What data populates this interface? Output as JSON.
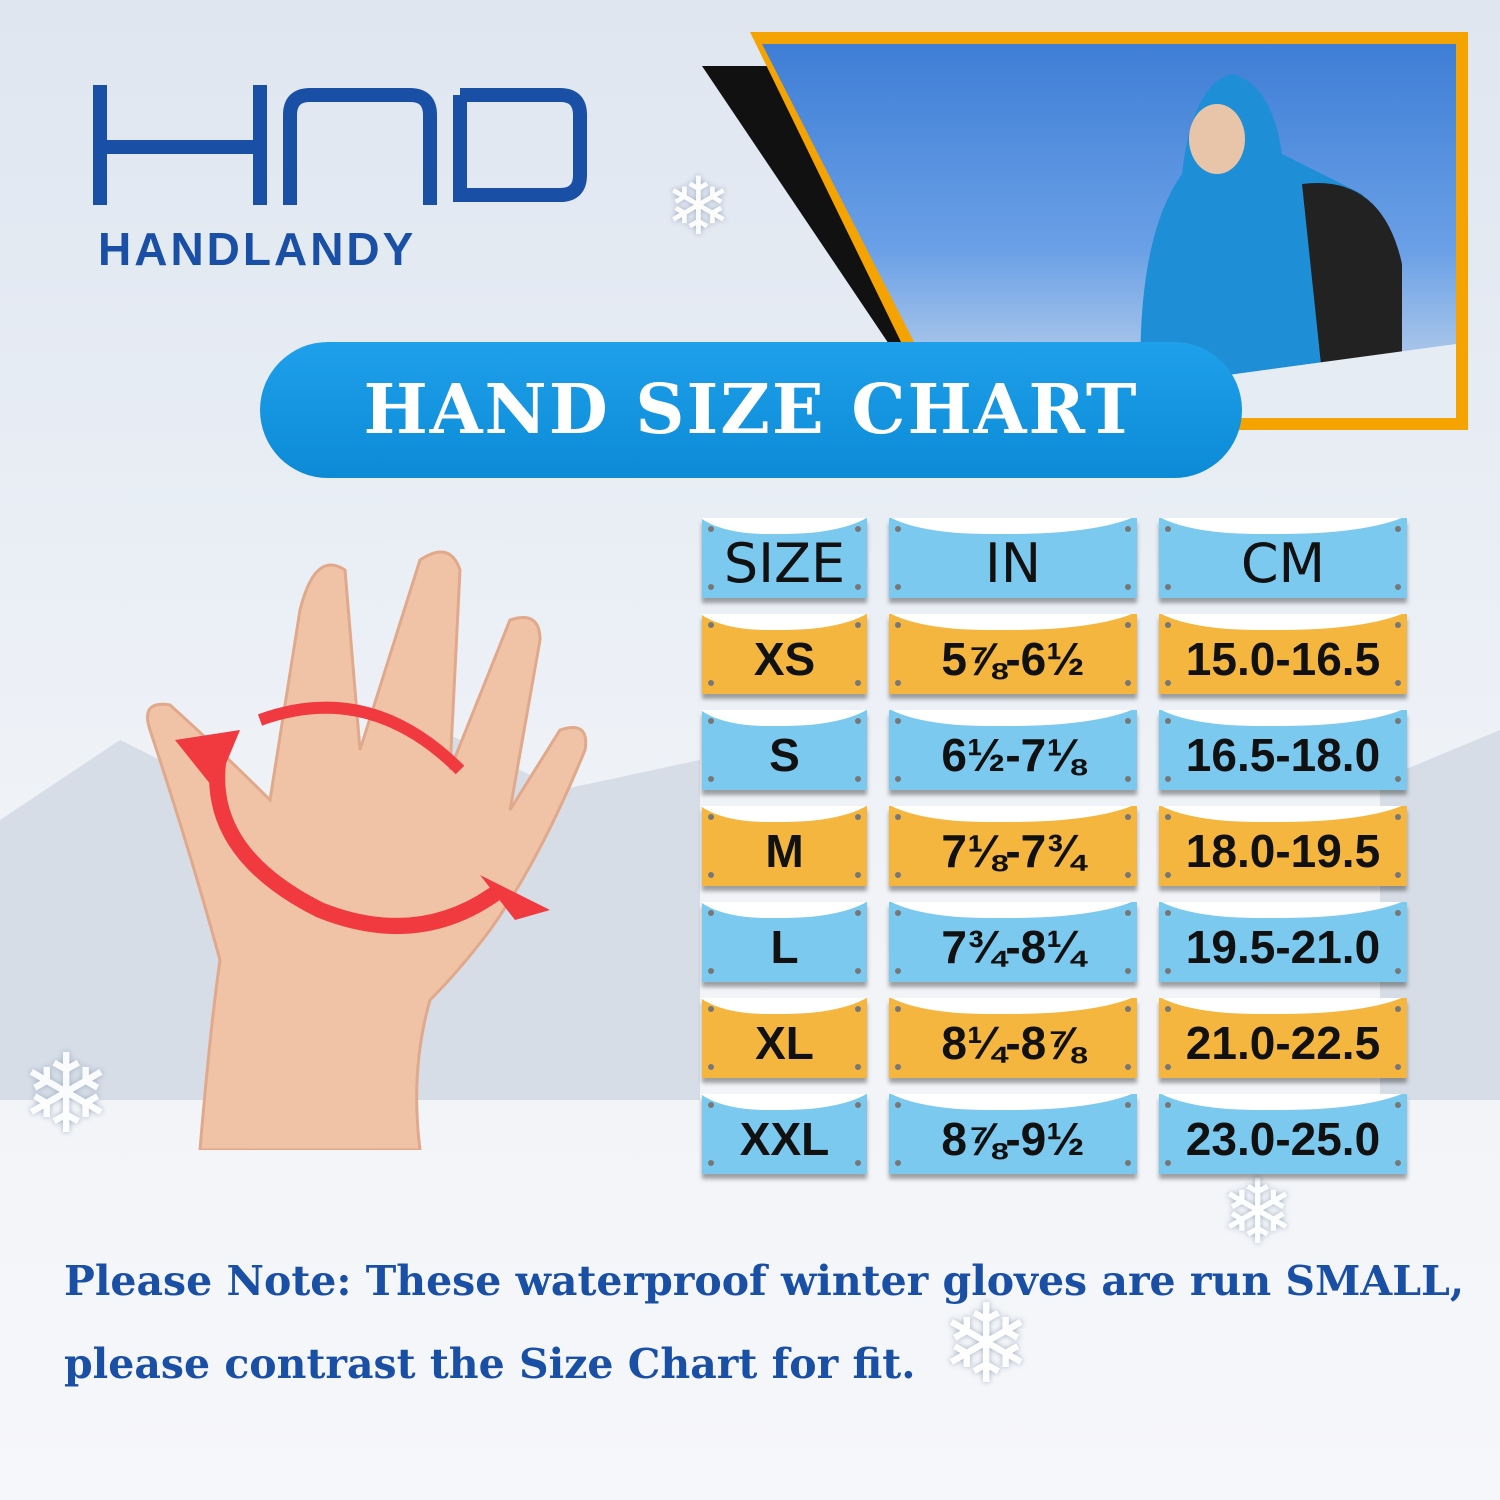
{
  "brand": {
    "logo_text": "HANDLANDY",
    "logo_mark": "HD"
  },
  "banner": {
    "title": "HAND SIZE CHART"
  },
  "table": {
    "headers": [
      "SIZE",
      "IN",
      "CM"
    ],
    "rows": [
      {
        "size": "XS",
        "in": "5⅞-6½",
        "cm": "15.0-16.5",
        "color": "orange"
      },
      {
        "size": "S",
        "in": "6½-7⅛",
        "cm": "16.5-18.0",
        "color": "blue"
      },
      {
        "size": "M",
        "in": "7⅛-7¾",
        "cm": "18.0-19.5",
        "color": "orange"
      },
      {
        "size": "L",
        "in": "7¾-8¼",
        "cm": "19.5-21.0",
        "color": "blue"
      },
      {
        "size": "XL",
        "in": "8¼-8⅞",
        "cm": "21.0-22.5",
        "color": "orange"
      },
      {
        "size": "XXL",
        "in": "8⅞-9½",
        "cm": "23.0-25.0",
        "color": "blue"
      }
    ]
  },
  "note": {
    "line1": "Please Note: These waterproof winter gloves are run SMALL,",
    "line2": "please contrast the Size Chart for fit."
  },
  "colors": {
    "brand_blue": "#1a4fa6",
    "banner_blue": "#0c8ad6",
    "orange": "#f4b63f",
    "light_blue": "#7cc9ef",
    "arrow_red": "#f03a3f",
    "frame_orange": "#f5a300"
  }
}
